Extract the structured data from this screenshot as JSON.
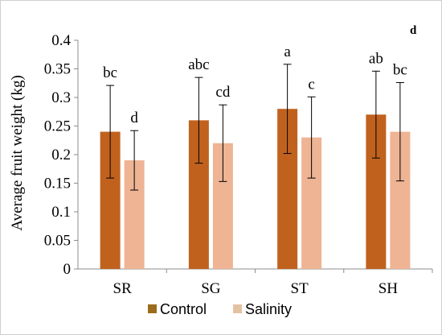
{
  "chart_data": {
    "type": "bar",
    "panel_label": "d",
    "ylabel": "Average fruit weight (kg)",
    "xlabel": "",
    "ylim": [
      0,
      0.4
    ],
    "yticks": [
      "0",
      "0.05",
      "0.1",
      "0.15",
      "0.2",
      "0.25",
      "0.3",
      "0.35",
      "0.4"
    ],
    "categories": [
      "SR",
      "SG",
      "ST",
      "SH"
    ],
    "series": [
      {
        "name": "Control",
        "color": "#c0621e",
        "values": [
          0.24,
          0.26,
          0.28,
          0.27
        ],
        "errors": [
          0.081,
          0.075,
          0.078,
          0.076
        ],
        "letters": [
          "bc",
          "abc",
          "a",
          "ab"
        ]
      },
      {
        "name": "Salinity",
        "color": "#eeb494",
        "values": [
          0.19,
          0.22,
          0.23,
          0.24
        ],
        "errors": [
          0.052,
          0.067,
          0.071,
          0.086
        ],
        "letters": [
          "d",
          "cd",
          "c",
          "bc"
        ]
      }
    ],
    "legend_position": "bottom",
    "grid": false,
    "legend_colors": {
      "Control": "#9c6b1c",
      "Salinity": "#e3c2a2"
    }
  }
}
